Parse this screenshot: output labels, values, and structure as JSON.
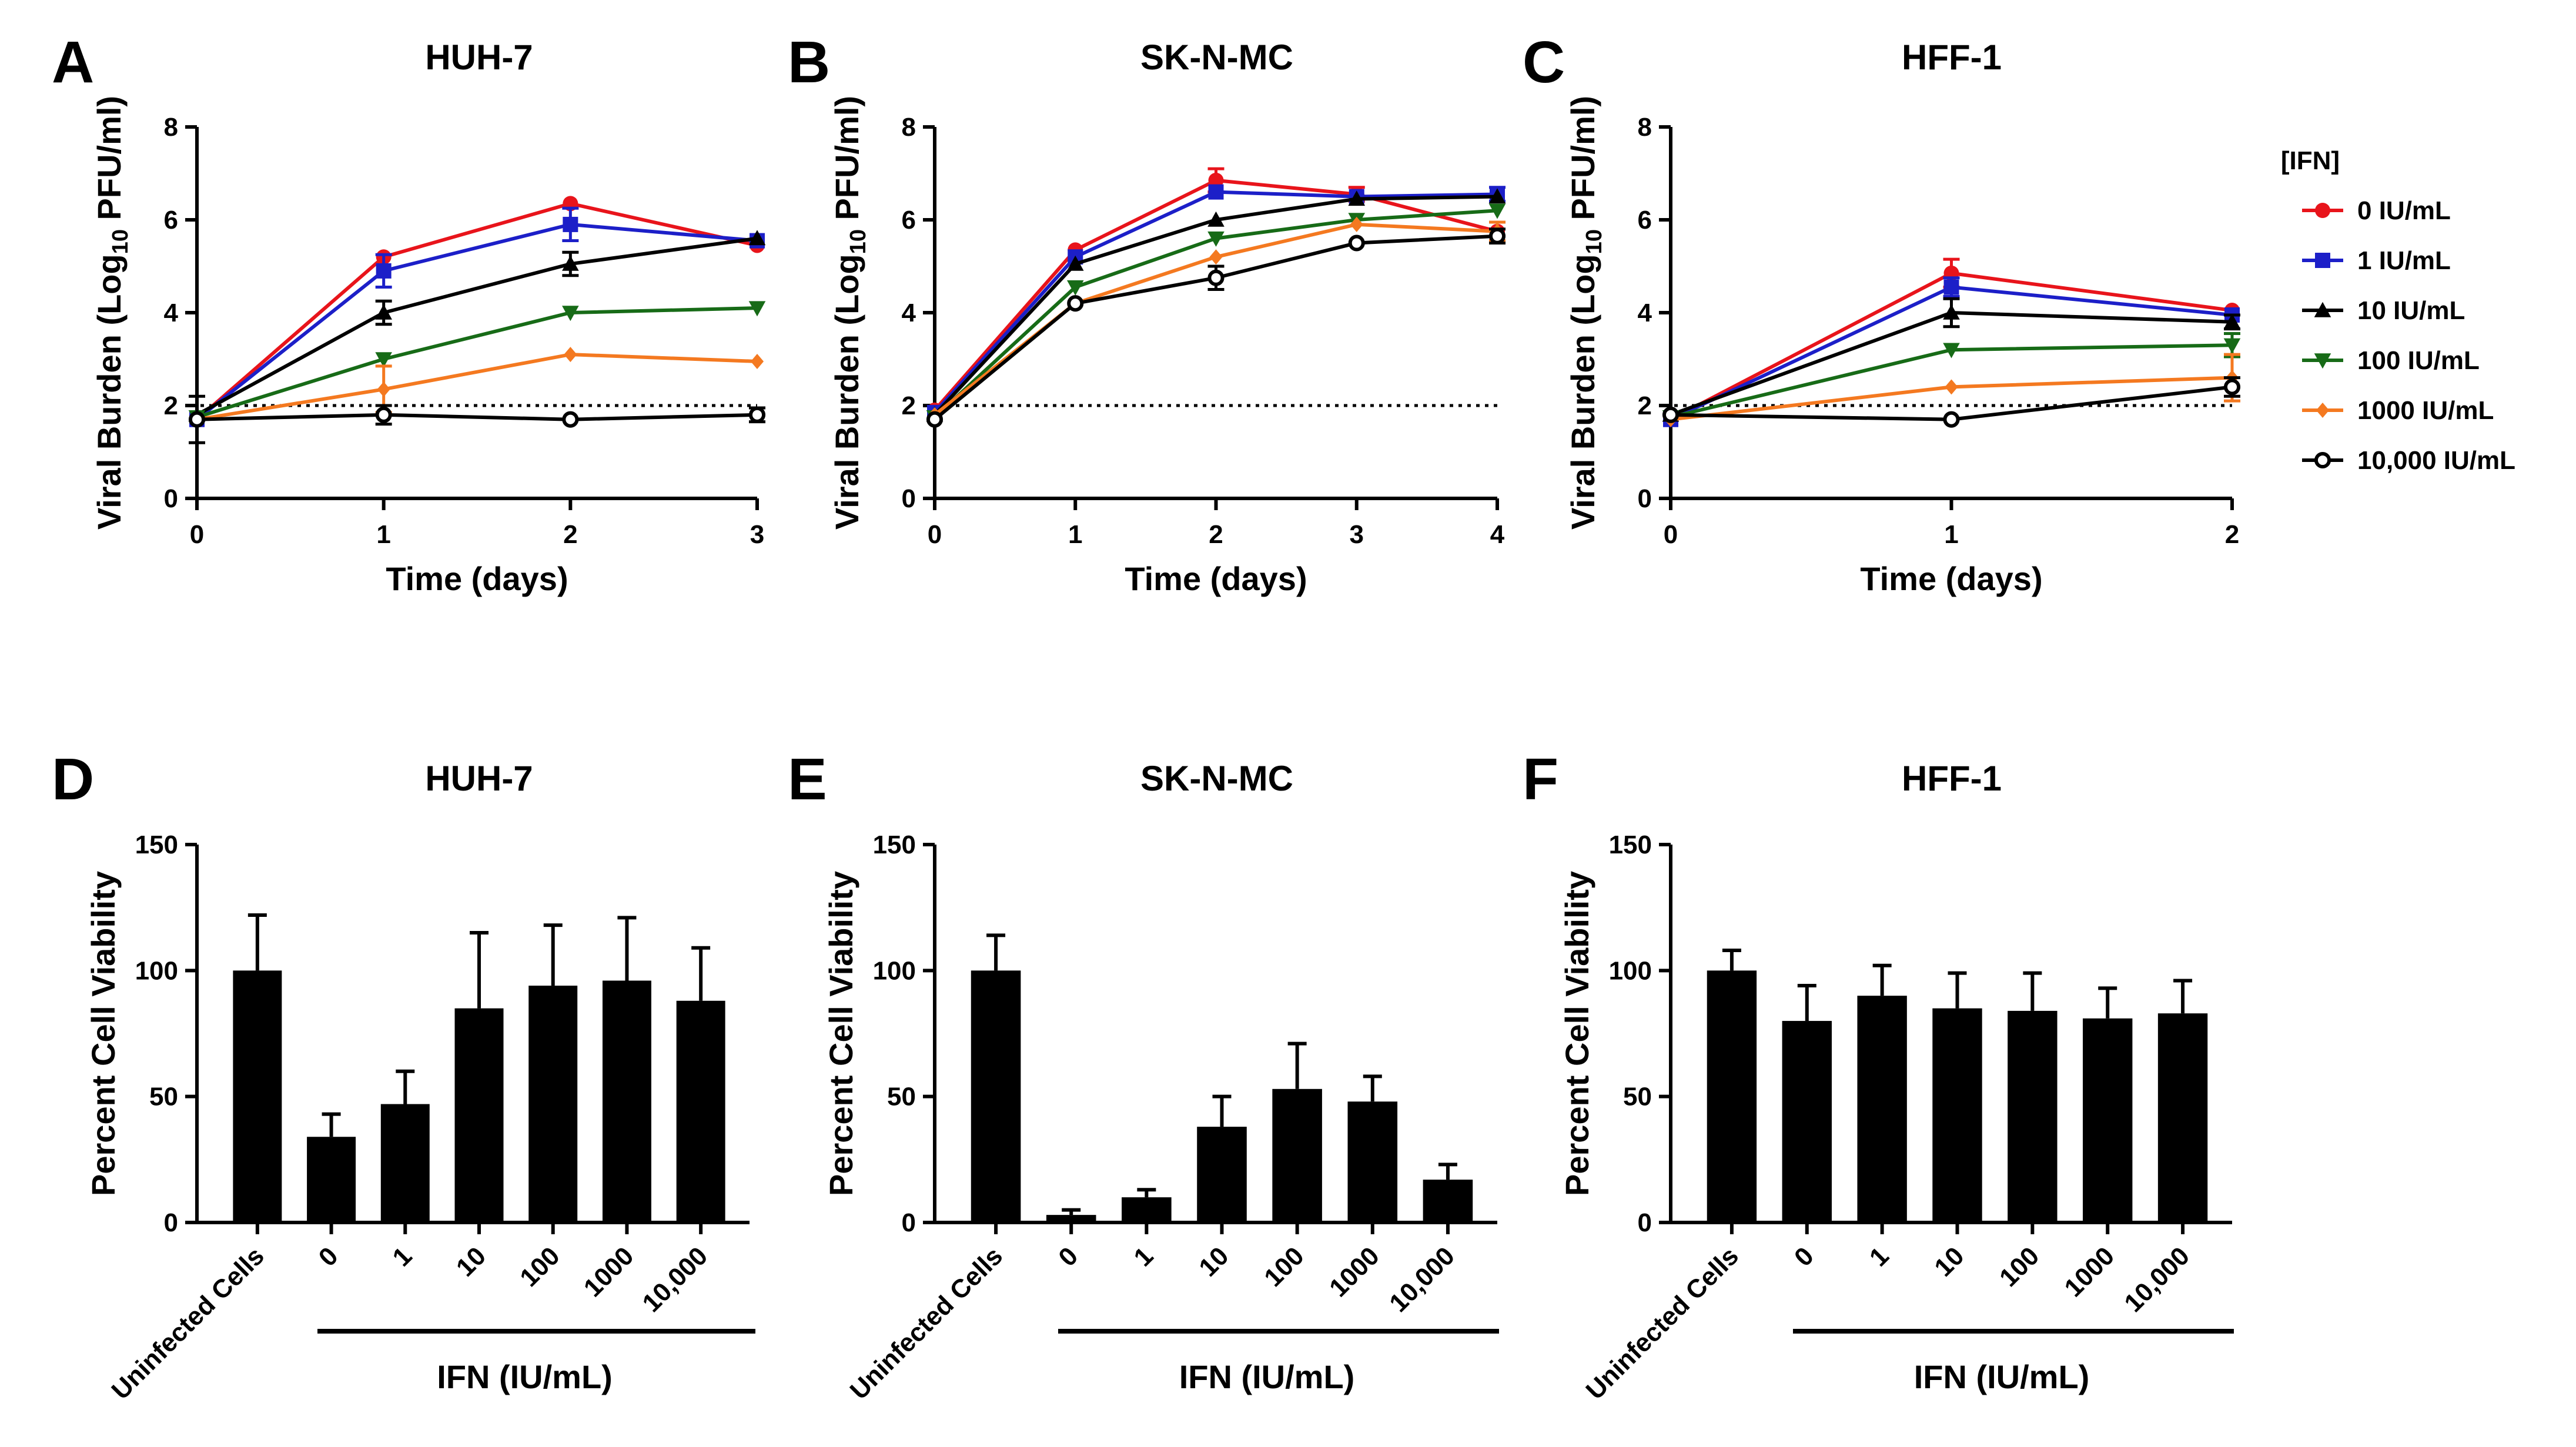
{
  "legend": {
    "title": "[IFN]",
    "entries": [
      {
        "label": "0 IU/mL",
        "color": "#e8141b",
        "marker": "circle"
      },
      {
        "label": "1 IU/mL",
        "color": "#1c1fc8",
        "marker": "square"
      },
      {
        "label": "10 IU/mL",
        "color": "#000000",
        "marker": "triangle-up"
      },
      {
        "label": "100 IU/mL",
        "color": "#176b17",
        "marker": "triangle-down"
      },
      {
        "label": "1000 IU/mL",
        "color": "#f47920",
        "marker": "diamond"
      },
      {
        "label": "10,000 IU/mL",
        "color": "#000000",
        "marker": "open-circle"
      }
    ]
  },
  "chart_data": [
    {
      "panel": "A",
      "title": "HUH-7",
      "type": "line",
      "xlabel": "Time (days)",
      "ylabel_main": "Viral Burden (Log",
      "ylabel_sub": "10",
      "ylabel_end": " PFU/ml)",
      "xlim": [
        0,
        3
      ],
      "ylim": [
        0,
        8
      ],
      "xticks": [
        "0",
        "1",
        "2",
        "3"
      ],
      "yticks": [
        "0",
        "2",
        "4",
        "6",
        "8"
      ],
      "limit_of_detection": 2,
      "x": [
        0,
        1,
        2,
        3
      ],
      "series": [
        {
          "name": "0 IU/mL",
          "values": [
            1.7,
            5.2,
            6.35,
            5.45
          ],
          "errors": [
            0.1,
            0.1,
            0.1,
            0.1
          ]
        },
        {
          "name": "1 IU/mL",
          "values": [
            1.7,
            4.9,
            5.9,
            5.55
          ],
          "errors": [
            0.1,
            0.35,
            0.35,
            0.1
          ]
        },
        {
          "name": "10 IU/mL",
          "values": [
            1.8,
            4.0,
            5.05,
            5.6
          ],
          "errors": [
            0.1,
            0.25,
            0.25,
            0.1
          ]
        },
        {
          "name": "100 IU/mL",
          "values": [
            1.75,
            3.0,
            4.0,
            4.1
          ],
          "errors": [
            0.1,
            0.1,
            0.1,
            0.1
          ]
        },
        {
          "name": "1000 IU/mL",
          "values": [
            1.7,
            2.35,
            3.1,
            2.95
          ],
          "errors": [
            0.1,
            0.5,
            0.1,
            0.1
          ]
        },
        {
          "name": "10,000 IU/mL",
          "values": [
            1.7,
            1.8,
            1.7,
            1.8
          ],
          "errors": [
            0.5,
            0.2,
            0.1,
            0.15
          ]
        }
      ]
    },
    {
      "panel": "B",
      "title": "SK-N-MC",
      "type": "line",
      "xlabel": "Time (days)",
      "ylabel_main": "Viral Burden (Log",
      "ylabel_sub": "10",
      "ylabel_end": " PFU/ml)",
      "xlim": [
        0,
        4
      ],
      "ylim": [
        0,
        8
      ],
      "xticks": [
        "0",
        "1",
        "2",
        "3",
        "4"
      ],
      "yticks": [
        "0",
        "2",
        "4",
        "6",
        "8"
      ],
      "limit_of_detection": 2,
      "x": [
        0,
        1,
        2,
        3,
        4
      ],
      "series": [
        {
          "name": "0 IU/mL",
          "values": [
            1.9,
            5.35,
            6.85,
            6.55,
            5.75
          ],
          "errors": [
            0.1,
            0.1,
            0.25,
            0.15,
            0.2
          ]
        },
        {
          "name": "1 IU/mL",
          "values": [
            1.85,
            5.2,
            6.6,
            6.5,
            6.55
          ],
          "errors": [
            0.1,
            0.1,
            0.1,
            0.1,
            0.15
          ]
        },
        {
          "name": "10 IU/mL",
          "values": [
            1.8,
            5.05,
            6.0,
            6.45,
            6.5
          ],
          "errors": [
            0.1,
            0.1,
            0.1,
            0.1,
            0.1
          ]
        },
        {
          "name": "100 IU/mL",
          "values": [
            1.75,
            4.55,
            5.6,
            6.0,
            6.2
          ],
          "errors": [
            0.1,
            0.1,
            0.1,
            0.1,
            0.1
          ]
        },
        {
          "name": "1000 IU/mL",
          "values": [
            1.8,
            4.2,
            5.2,
            5.9,
            5.75
          ],
          "errors": [
            0.1,
            0.1,
            0.1,
            0.1,
            0.2
          ]
        },
        {
          "name": "10,000 IU/mL",
          "values": [
            1.7,
            4.2,
            4.75,
            5.5,
            5.65
          ],
          "errors": [
            0.1,
            0.1,
            0.25,
            0.1,
            0.15
          ]
        }
      ]
    },
    {
      "panel": "C",
      "title": "HFF-1",
      "type": "line",
      "xlabel": "Time (days)",
      "ylabel_main": "Viral Burden (Log",
      "ylabel_sub": "10",
      "ylabel_end": " PFU/ml)",
      "xlim": [
        0,
        2
      ],
      "ylim": [
        0,
        8
      ],
      "xticks": [
        "0",
        "1",
        "2"
      ],
      "yticks": [
        "0",
        "2",
        "4",
        "6",
        "8"
      ],
      "limit_of_detection": 2,
      "x": [
        0,
        1,
        2
      ],
      "series": [
        {
          "name": "0 IU/mL",
          "values": [
            1.7,
            4.85,
            4.05
          ],
          "errors": [
            0.1,
            0.3,
            0.1
          ]
        },
        {
          "name": "1 IU/mL",
          "values": [
            1.7,
            4.55,
            3.95
          ],
          "errors": [
            0.1,
            0.2,
            0.1
          ]
        },
        {
          "name": "10 IU/mL",
          "values": [
            1.8,
            4.0,
            3.8
          ],
          "errors": [
            0.1,
            0.3,
            0.15
          ]
        },
        {
          "name": "100 IU/mL",
          "values": [
            1.75,
            3.2,
            3.3
          ],
          "errors": [
            0.1,
            0.1,
            0.25
          ]
        },
        {
          "name": "1000 IU/mL",
          "values": [
            1.7,
            2.4,
            2.6
          ],
          "errors": [
            0.1,
            0.1,
            0.5
          ]
        },
        {
          "name": "10,000 IU/mL",
          "values": [
            1.8,
            1.7,
            2.4
          ],
          "errors": [
            0.1,
            0.1,
            0.2
          ]
        }
      ]
    },
    {
      "panel": "D",
      "title": "HUH-7",
      "type": "bar",
      "ylabel": "Percent Cell Viability",
      "group_label": "IFN (IU/mL)",
      "ylim": [
        0,
        150
      ],
      "yticks": [
        "0",
        "50",
        "100",
        "150"
      ],
      "categories": [
        "Uninfected Cells",
        "0",
        "1",
        "10",
        "100",
        "1000",
        "10,000"
      ],
      "values": [
        100,
        34,
        47,
        85,
        94,
        96,
        88
      ],
      "errors": [
        22,
        9,
        13,
        30,
        24,
        25,
        21
      ]
    },
    {
      "panel": "E",
      "title": "SK-N-MC",
      "type": "bar",
      "ylabel": "Percent Cell Viability",
      "group_label": "IFN (IU/mL)",
      "ylim": [
        0,
        150
      ],
      "yticks": [
        "0",
        "50",
        "100",
        "150"
      ],
      "categories": [
        "Uninfected Cells",
        "0",
        "1",
        "10",
        "100",
        "1000",
        "10,000"
      ],
      "values": [
        100,
        3,
        10,
        38,
        53,
        48,
        17
      ],
      "errors": [
        14,
        2,
        3,
        12,
        18,
        10,
        6
      ]
    },
    {
      "panel": "F",
      "title": "HFF-1",
      "type": "bar",
      "ylabel": "Percent Cell Viability",
      "group_label": "IFN (IU/mL)",
      "ylim": [
        0,
        150
      ],
      "yticks": [
        "0",
        "50",
        "100",
        "150"
      ],
      "categories": [
        "Uninfected Cells",
        "0",
        "1",
        "10",
        "100",
        "1000",
        "10,000"
      ],
      "values": [
        100,
        80,
        90,
        85,
        84,
        81,
        83
      ],
      "errors": [
        8,
        14,
        12,
        14,
        15,
        12,
        13
      ]
    }
  ]
}
